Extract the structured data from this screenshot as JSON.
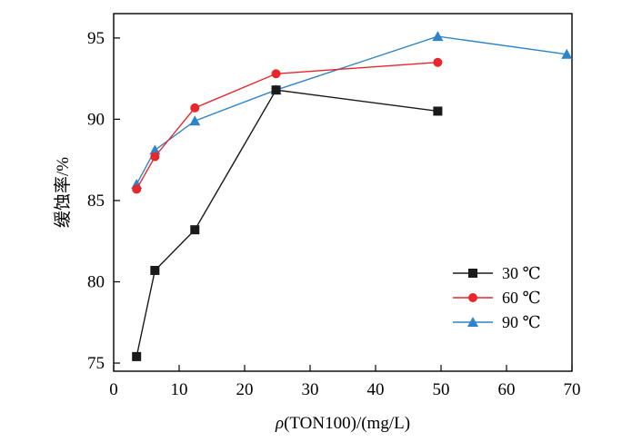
{
  "chart_data": {
    "type": "line",
    "xlabel_prefix": "ρ",
    "xlabel_rest": "(TON100)/(mg/L)",
    "ylabel": "缓蚀率/%",
    "xlim": [
      0,
      70
    ],
    "ylim": [
      74.5,
      96.5
    ],
    "xticks": [
      0,
      10,
      20,
      30,
      40,
      50,
      60,
      70
    ],
    "yticks": [
      75,
      80,
      85,
      90,
      95
    ],
    "grid": false,
    "legend_position": "bottom-right",
    "series": [
      {
        "name": "30 ℃",
        "color": "#1a1a1a",
        "marker": "square",
        "x": [
          3.5,
          6.3,
          12.4,
          24.8,
          49.5
        ],
        "y": [
          75.4,
          80.7,
          83.2,
          91.8,
          90.5
        ]
      },
      {
        "name": "60 ℃",
        "color": "#e8262c",
        "marker": "circle",
        "x": [
          3.5,
          6.3,
          12.4,
          24.8,
          49.5
        ],
        "y": [
          85.7,
          87.7,
          90.7,
          92.8,
          93.5
        ]
      },
      {
        "name": "90 ℃",
        "color": "#2f84c8",
        "marker": "triangle",
        "x": [
          3.5,
          6.3,
          12.4,
          24.8,
          49.5,
          69.2
        ],
        "y": [
          86.0,
          88.1,
          89.9,
          91.8,
          95.1,
          94.0
        ]
      }
    ]
  }
}
